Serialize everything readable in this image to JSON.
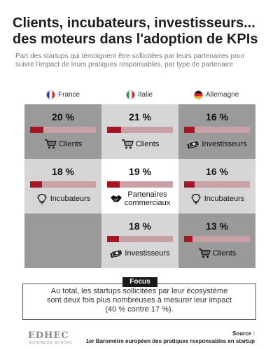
{
  "header": {
    "title_line1": "Clients, incubateurs, investisseurs...",
    "title_line2": "des moteurs dans l'adoption de KPIs",
    "subtitle": "Part des startups qui témoignent être sollicitées par leurs partenaires pour suivre l'impact de leurs pratiques responsables, par type de partenaire"
  },
  "chart_data": {
    "type": "table",
    "columns": [
      "France",
      "Italie",
      "Allemagne"
    ],
    "scale_max": 100,
    "rows": [
      [
        {
          "value": 20,
          "text": "20 %",
          "partner": "Clients",
          "icon": "shopping-cart-icon"
        },
        {
          "value": 21,
          "text": "21 %",
          "partner": "Clients",
          "icon": "shopping-cart-icon"
        },
        {
          "value": 16,
          "text": "16 %",
          "partner": "Investisseurs",
          "icon": "money-icon"
        }
      ],
      [
        {
          "value": 18,
          "text": "18 %",
          "partner": "Incubateurs",
          "icon": "lightbulb-icon"
        },
        {
          "value": 19,
          "text": "19 %",
          "partner": "Partenaires commerciaux",
          "partner_l1": "Partenaires",
          "partner_l2": "commerciaux",
          "icon": "handshake-icon"
        },
        {
          "value": 16,
          "text": "16 %",
          "partner": "Incubateurs",
          "icon": "lightbulb-icon"
        }
      ],
      [
        null,
        {
          "value": 18,
          "text": "18 %",
          "partner": "Investisseurs",
          "icon": "money-icon"
        },
        {
          "value": 13,
          "text": "13 %",
          "partner": "Clients",
          "icon": "shopping-cart-icon"
        }
      ]
    ]
  },
  "focus": {
    "tab": "Focus",
    "line1": "Au total, les startups sollicitées par leur écosystème",
    "line2": "sont deux fois plus nombreuses à mesurer leur impact",
    "line3": "(40 % contre 17 %)."
  },
  "footer": {
    "logo_main": "EDHEC",
    "logo_sub": "BUSINESS SCHOOL",
    "source_label": "Source :",
    "source_text": "1er Baromètre européen des pratiques responsables en startup"
  },
  "colors": {
    "bar_fill": "#a51524",
    "bar_track": "#c9a0a6",
    "cell_dark": "#9a9a9a",
    "cell_light": "#d6d6d6"
  }
}
